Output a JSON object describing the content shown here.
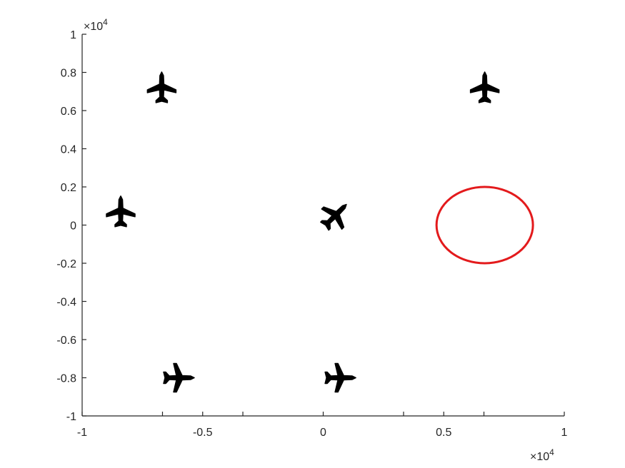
{
  "chart_data": {
    "type": "scatter",
    "title": "",
    "xlabel": "",
    "ylabel": "",
    "xlim": [
      -10000,
      10000
    ],
    "ylim": [
      -10000,
      10000
    ],
    "x_exponent_label": "×10",
    "x_exponent_power": "4",
    "y_exponent_label": "×10",
    "y_exponent_power": "4",
    "x_ticks": [
      {
        "value": -10000,
        "label": "-1"
      },
      {
        "value": -5000,
        "label": "-0.5"
      },
      {
        "value": 0,
        "label": "0"
      },
      {
        "value": 5000,
        "label": "0.5"
      },
      {
        "value": 10000,
        "label": "1"
      }
    ],
    "x_minor_ticks": [
      -6667,
      -3333,
      3333,
      6667
    ],
    "y_ticks": [
      {
        "value": -10000,
        "label": "-1"
      },
      {
        "value": -8000,
        "label": "-0.8"
      },
      {
        "value": -6000,
        "label": "-0.6"
      },
      {
        "value": -4000,
        "label": "-0.4"
      },
      {
        "value": -2000,
        "label": "-0.2"
      },
      {
        "value": 0,
        "label": "0"
      },
      {
        "value": 2000,
        "label": "0.2"
      },
      {
        "value": 4000,
        "label": "0.4"
      },
      {
        "value": 6000,
        "label": "0.6"
      },
      {
        "value": 8000,
        "label": "0.8"
      },
      {
        "value": 10000,
        "label": "1"
      }
    ],
    "grid": false,
    "markers": [
      {
        "name": "aircraft",
        "x": -6700,
        "y": 7200,
        "heading_deg": 0,
        "color": "#000000"
      },
      {
        "name": "aircraft",
        "x": 6700,
        "y": 7200,
        "heading_deg": 0,
        "color": "#000000"
      },
      {
        "name": "aircraft",
        "x": -8400,
        "y": 700,
        "heading_deg": 0,
        "color": "#000000"
      },
      {
        "name": "aircraft",
        "x": 500,
        "y": 500,
        "heading_deg": 45,
        "color": "#000000"
      },
      {
        "name": "aircraft",
        "x": -6000,
        "y": -8000,
        "heading_deg": 90,
        "color": "#000000"
      },
      {
        "name": "aircraft",
        "x": 700,
        "y": -8000,
        "heading_deg": 90,
        "color": "#000000"
      }
    ],
    "circle": {
      "cx": 6700,
      "cy": 0,
      "r": 2000,
      "color": "#e31a1c"
    }
  }
}
